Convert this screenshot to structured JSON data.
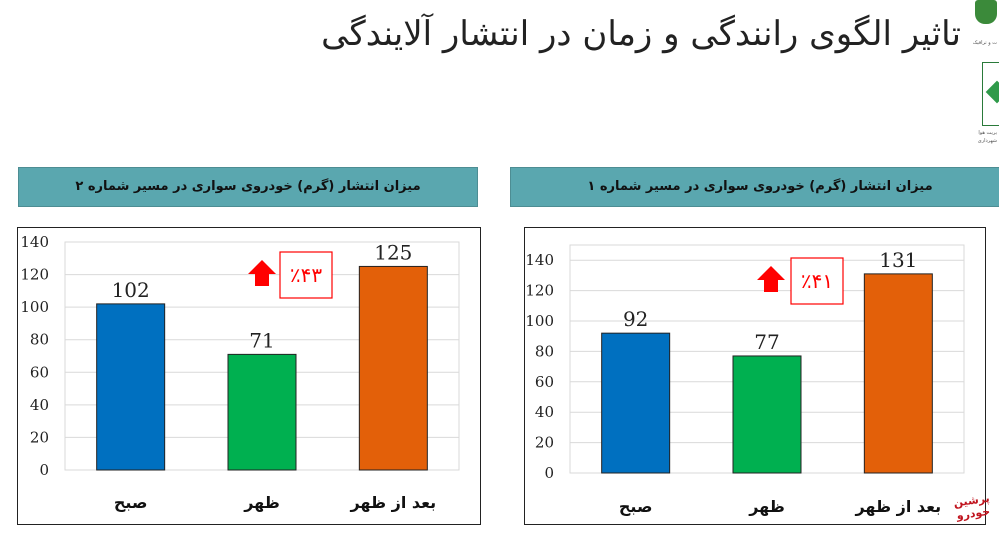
{
  "title": "تاثیر الگوی رانندگی و زمان در انتشار آلایندگی",
  "logo": {
    "text": "ت و ترافیک",
    "text2": "یریت هوا",
    "text3": "شهرداری"
  },
  "watermark": {
    "line1": "پرشین",
    "line2": "خودرو"
  },
  "colors": {
    "accent": "#5aa7af",
    "blue": "#0070c0",
    "green": "#00b050",
    "orange": "#e36009",
    "arrow": "#ff0000"
  },
  "chart_data": [
    {
      "type": "bar",
      "title": "میزان انتشار (گرم) خودروی سواری در مسیر شماره ۲",
      "categories": [
        "صبح",
        "ظهر",
        "بعد از ظهر"
      ],
      "values": [
        102,
        71,
        125
      ],
      "colors": [
        "#0070c0",
        "#00b050",
        "#e36009"
      ],
      "ylim": [
        0,
        140
      ],
      "yticks": [
        0,
        20,
        40,
        60,
        80,
        100,
        120,
        140
      ],
      "annotation": "٪۴۳",
      "annotation_icon": "up-arrow-icon",
      "grid": true
    },
    {
      "type": "bar",
      "title": "میزان انتشار (گرم) خودروی سواری در مسیر شماره ۱",
      "categories": [
        "صبح",
        "ظهر",
        "بعد از ظهر"
      ],
      "values": [
        92,
        77,
        131
      ],
      "colors": [
        "#0070c0",
        "#00b050",
        "#e36009"
      ],
      "ylim": [
        0,
        150
      ],
      "yticks": [
        0,
        20,
        40,
        60,
        80,
        100,
        120,
        140
      ],
      "annotation": "٪۴۱",
      "annotation_icon": "up-arrow-icon",
      "grid": true
    }
  ]
}
